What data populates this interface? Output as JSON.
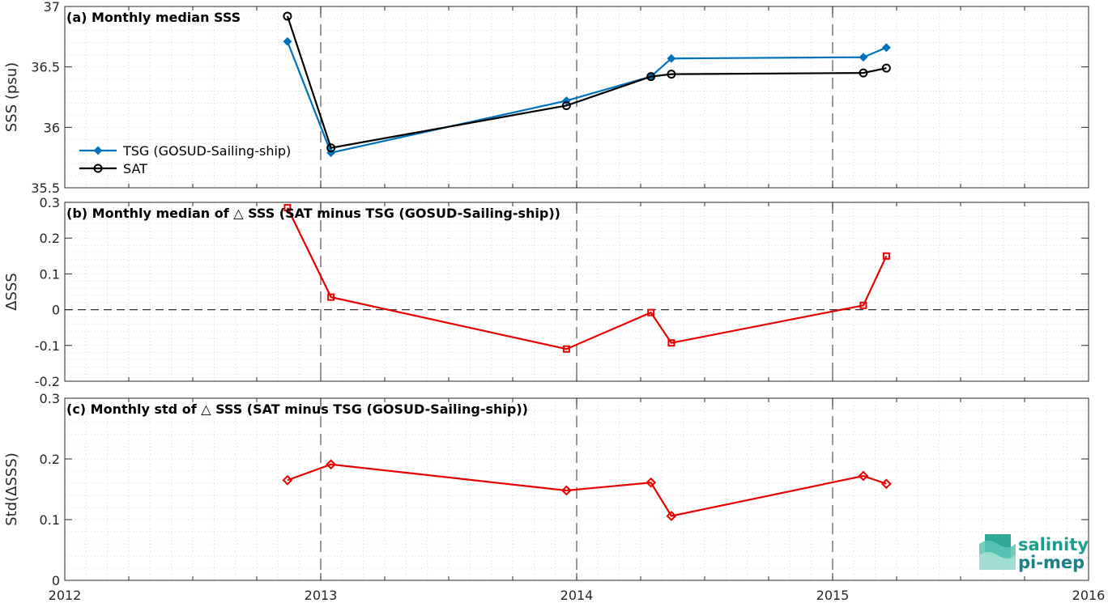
{
  "colors": {
    "tsg": "#0072BD",
    "sat": "#000000",
    "delta": "#E60000",
    "grid": "#d9d9d9",
    "axis": "#262626",
    "logo": "#1a9e8f"
  },
  "logo": {
    "line1": "salinity",
    "line2": "pi-mep"
  },
  "chart_data": [
    {
      "type": "line",
      "title": "(a) Monthly median SSS",
      "ylabel": "SSS (psu)",
      "xlim": [
        2012,
        2016
      ],
      "ylim": [
        35.5,
        37
      ],
      "x_ticks": [
        "2012",
        "2013",
        "2014",
        "2015",
        "2016"
      ],
      "y_ticks": [
        "35.5",
        "36",
        "36.5",
        "37"
      ],
      "grid": true,
      "legend": "left",
      "x": [
        2012.87,
        2013.04,
        2013.96,
        2014.29,
        2014.37,
        2015.12,
        2015.21
      ],
      "series": [
        {
          "name": "TSG (GOSUD-Sailing-ship)",
          "marker": "diamond",
          "values": [
            36.71,
            35.79,
            36.22,
            36.42,
            36.57,
            36.58,
            36.66
          ]
        },
        {
          "name": "SAT",
          "marker": "circle",
          "values": [
            36.92,
            35.83,
            36.18,
            36.42,
            36.44,
            36.45,
            36.49
          ]
        }
      ]
    },
    {
      "type": "line",
      "title": "(b) Monthly median of △ SSS (SAT minus TSG (GOSUD-Sailing-ship))",
      "ylabel": "ΔSSS",
      "xlim": [
        2012,
        2016
      ],
      "ylim": [
        -0.2,
        0.3
      ],
      "x_ticks": [
        "2012",
        "2013",
        "2014",
        "2015",
        "2016"
      ],
      "y_ticks": [
        "-0.2",
        "-0.1",
        "0",
        "0.1",
        "0.2",
        "0.3"
      ],
      "grid": true,
      "zero_line": true,
      "x": [
        2012.87,
        2013.04,
        2013.96,
        2014.29,
        2014.37,
        2015.12,
        2015.21
      ],
      "series": [
        {
          "marker": "square",
          "values": [
            0.285,
            0.035,
            -0.11,
            -0.008,
            -0.093,
            0.012,
            0.15
          ]
        }
      ]
    },
    {
      "type": "line",
      "title": "(c) Monthly std of △ SSS (SAT minus TSG (GOSUD-Sailing-ship))",
      "ylabel": "Std(ΔSSS)",
      "xlim": [
        2012,
        2016
      ],
      "ylim": [
        0,
        0.3
      ],
      "x_ticks": [
        "2012",
        "2013",
        "2014",
        "2015",
        "2016"
      ],
      "y_ticks": [
        "0",
        "0.1",
        "0.2",
        "0.3"
      ],
      "grid": true,
      "x": [
        2012.87,
        2013.04,
        2013.96,
        2014.29,
        2014.37,
        2015.12,
        2015.21
      ],
      "series": [
        {
          "marker": "diamond",
          "values": [
            0.165,
            0.191,
            0.148,
            0.161,
            0.106,
            0.172,
            0.159
          ]
        }
      ]
    }
  ]
}
